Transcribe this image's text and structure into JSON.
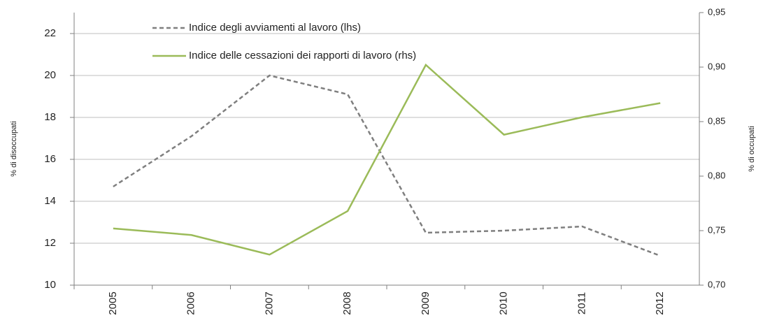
{
  "chart_data": {
    "type": "line",
    "categories": [
      "2005",
      "2006",
      "2007",
      "2008",
      "2009",
      "2010",
      "2011",
      "2012"
    ],
    "series": [
      {
        "name": "Indice degli avviamenti al lavoro (lhs)",
        "color": "#7f7f7f",
        "style": "dashed",
        "axis": "y",
        "values": [
          14.7,
          17.1,
          20.0,
          19.1,
          12.5,
          12.6,
          12.8,
          11.4
        ]
      },
      {
        "name": "Indice delle cessazioni dei rapporti di lavoro (rhs)",
        "color": "#9bbb59",
        "style": "solid",
        "axis": "y2",
        "values": [
          0.752,
          0.746,
          0.728,
          0.768,
          0.902,
          0.838,
          0.854,
          0.867
        ]
      }
    ],
    "ylabel": "% di disoccupati",
    "y2label": "% di occupati",
    "ylim": [
      10,
      23
    ],
    "yticks": [
      10,
      12,
      14,
      16,
      18,
      20,
      22
    ],
    "y2lim": [
      0.7,
      0.95
    ],
    "y2ticks": [
      {
        "value": 0.7,
        "label": "0,70"
      },
      {
        "value": 0.75,
        "label": "0,75"
      },
      {
        "value": 0.8,
        "label": "0,80"
      },
      {
        "value": 0.85,
        "label": "0,85"
      },
      {
        "value": 0.9,
        "label": "0,90"
      },
      {
        "value": 0.95,
        "label": "0,95"
      }
    ],
    "grid": true,
    "legend": "top-left"
  }
}
